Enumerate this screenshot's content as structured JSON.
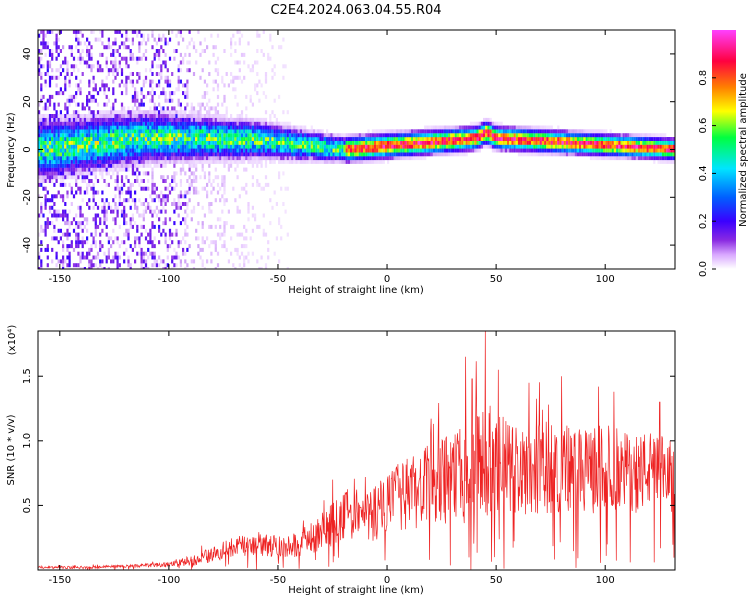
{
  "title": "C2E4.2024.063.04.55.R04",
  "colors": {
    "snr_line": "#ee2222",
    "colormap": [
      "#ffffff",
      "#d9a8ff",
      "#8a2be2",
      "#3a00ff",
      "#0060ff",
      "#00e5ff",
      "#00ff40",
      "#ffff00",
      "#ff8000",
      "#ff0040",
      "#ff40ff"
    ]
  },
  "chart_data": [
    {
      "type": "heatmap",
      "xlabel": "Height of straight line (km)",
      "ylabel": "Frequency (Hz)",
      "xlim": [
        -160,
        132
      ],
      "ylim": [
        -50,
        50
      ],
      "xticks": [
        -150,
        -100,
        -50,
        0,
        50,
        100
      ],
      "yticks": [
        -40,
        -20,
        0,
        20,
        40
      ],
      "colorbar": {
        "label": "Normalized spectral amplitude",
        "range": [
          0,
          1
        ],
        "ticks": [
          "0.0",
          "0.2",
          "0.4",
          "0.6",
          "0.8"
        ]
      },
      "ridge": {
        "description_points": [
          {
            "x": -160,
            "center": 0,
            "noise": 1.0
          },
          {
            "x": -110,
            "center": 5,
            "noise": 0.8
          },
          {
            "x": -60,
            "center": 4,
            "noise": 0.5
          },
          {
            "x": -20,
            "center": 0,
            "noise": 0.2
          },
          {
            "x": 45,
            "center": 5,
            "noise": 0.15
          },
          {
            "x": 132,
            "center": 0,
            "noise": 0.1
          }
        ]
      }
    },
    {
      "type": "line",
      "xlabel": "Height of straight line (km)",
      "ylabel": "SNR (10 * v/v)",
      "y_multiplier": "(x10⁴)",
      "xlim": [
        -160,
        132
      ],
      "ylim": [
        0,
        1.85
      ],
      "xticks": [
        -150,
        -100,
        -50,
        0,
        50,
        100
      ],
      "yticks": [
        0.5,
        1.0,
        1.5
      ],
      "series": [
        {
          "x": [
            -160,
            -140,
            -120,
            -100,
            -90,
            -80,
            -70,
            -60,
            -50,
            -40,
            -30,
            -25,
            -20,
            -15,
            -10,
            -5,
            0,
            5,
            10,
            15,
            20,
            25,
            30,
            35,
            40,
            45,
            50,
            55,
            60,
            65,
            70,
            75,
            80,
            85,
            90,
            95,
            100,
            105,
            110,
            115,
            120,
            125,
            130
          ],
          "y": [
            0.02,
            0.02,
            0.03,
            0.04,
            0.07,
            0.12,
            0.18,
            0.2,
            0.18,
            0.2,
            0.3,
            0.35,
            0.4,
            0.45,
            0.4,
            0.45,
            0.5,
            0.55,
            0.6,
            0.62,
            0.66,
            0.68,
            0.72,
            0.74,
            0.8,
            0.85,
            0.82,
            0.8,
            0.78,
            0.8,
            0.8,
            0.78,
            0.8,
            0.78,
            0.75,
            0.78,
            0.8,
            0.78,
            0.76,
            0.75,
            0.78,
            0.75,
            0.72
          ],
          "spread": [
            0.01,
            0.01,
            0.01,
            0.02,
            0.04,
            0.06,
            0.08,
            0.09,
            0.08,
            0.1,
            0.15,
            0.18,
            0.2,
            0.22,
            0.2,
            0.24,
            0.25,
            0.26,
            0.28,
            0.3,
            0.32,
            0.34,
            0.36,
            0.4,
            0.42,
            0.45,
            0.42,
            0.38,
            0.36,
            0.38,
            0.38,
            0.36,
            0.35,
            0.36,
            0.32,
            0.34,
            0.34,
            0.33,
            0.3,
            0.32,
            0.3,
            0.3,
            0.3
          ],
          "peaks": [
            [
              45,
              1.85
            ],
            [
              39,
              1.48
            ],
            [
              36,
              1.65
            ],
            [
              51,
              1.55
            ],
            [
              65,
              1.45
            ],
            [
              74,
              1.28
            ],
            [
              80,
              1.5
            ],
            [
              97,
              1.42
            ],
            [
              104,
              1.38
            ],
            [
              110,
              1.05
            ],
            [
              125,
              1.3
            ],
            [
              -47,
              0.2
            ],
            [
              -25,
              0.7
            ],
            [
              -10,
              0.72
            ],
            [
              5,
              0.82
            ],
            [
              20,
              1.05
            ]
          ]
        }
      ]
    }
  ]
}
